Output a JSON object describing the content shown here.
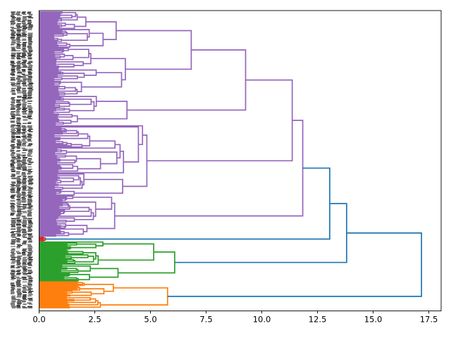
{
  "figure": {
    "kind": "matplotlib-dendrogram-figure",
    "background": "#ffffff"
  },
  "chart_data": {
    "type": "dendrogram",
    "title": "",
    "orientation": "leaves-left-root-right",
    "x_axis": {
      "label": "",
      "tick_labels": [
        "0.0",
        "2.5",
        "5.0",
        "7.5",
        "10.0",
        "12.5",
        "15.0",
        "17.5"
      ],
      "tick_values": [
        0,
        2.5,
        5,
        7.5,
        10,
        12.5,
        15,
        17.5
      ],
      "range": [
        0,
        18.05
      ],
      "grid": false
    },
    "y_axis": {
      "label": "",
      "description": "dense illegible leaf labels, one per observation",
      "tick_labels_legible": false
    },
    "total_leaves": 253,
    "above_threshold_color": "#1f77b4",
    "axis_color": "#000000",
    "clusters": [
      {
        "name": "purple",
        "color": "#9467bd",
        "leaf_count": 192,
        "root_distance": 11.84,
        "root_split": 0.82
      },
      {
        "name": "red",
        "color": "#d62728",
        "leaf_count": 4,
        "root_distance": 0.27,
        "root_split": 0.5
      },
      {
        "name": "green",
        "color": "#2ca02c",
        "leaf_count": 34,
        "root_distance": 6.09,
        "root_split": 0.6
      },
      {
        "name": "orange",
        "color": "#ff7f0e",
        "leaf_count": 23,
        "root_distance": 5.77,
        "root_split": 0.55
      }
    ],
    "top_merges": [
      {
        "a": "purple",
        "b": "red",
        "distance": 13.05
      },
      {
        "a": "merge0",
        "b": "green",
        "distance": 13.81
      },
      {
        "a": "merge1",
        "b": "orange",
        "distance": 17.17
      }
    ]
  }
}
